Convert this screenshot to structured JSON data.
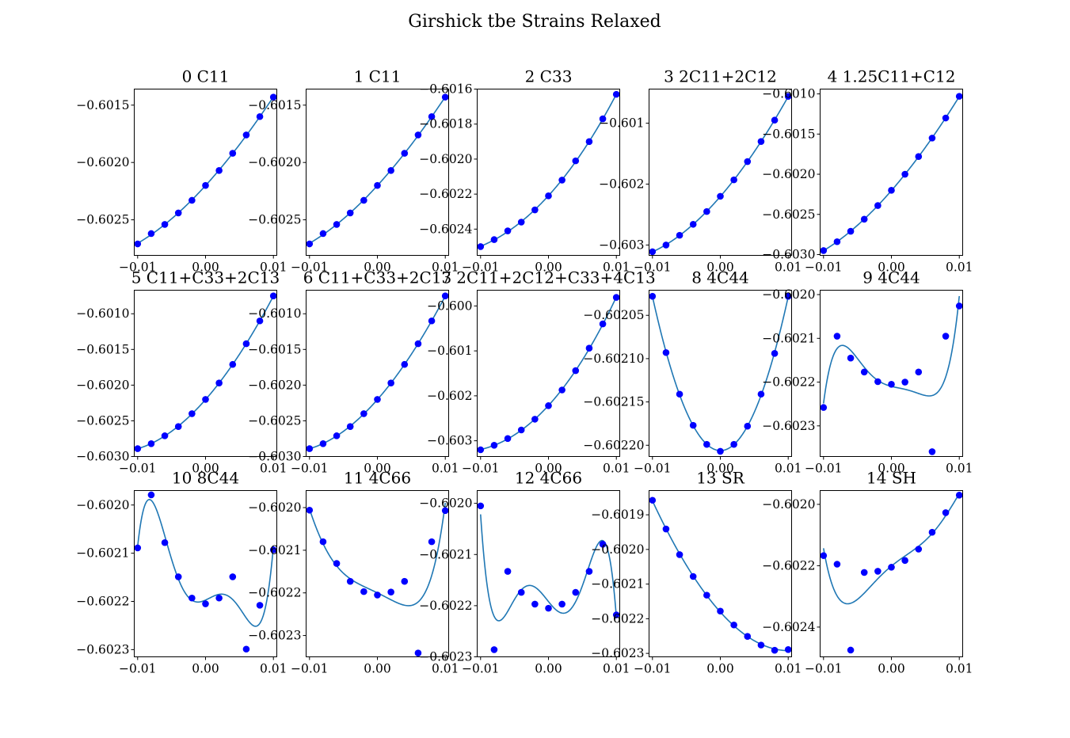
{
  "figure": {
    "title": "Girshick tbe Strains Relaxed"
  },
  "style": {
    "point_color": "#0000ff",
    "line_color": "#1f77b4",
    "axis_color": "#000000"
  },
  "chart_data": [
    {
      "type": "scatter",
      "title": "0 C11",
      "xlim": [
        -0.0105,
        0.0105
      ],
      "ylim": [
        -0.60281,
        -0.60136
      ],
      "xticks": [
        -0.01,
        0.0,
        0.01
      ],
      "xtick_labels": [
        "−0.01",
        "0.00",
        "0.01"
      ],
      "yticks": [
        -0.6015,
        -0.602,
        -0.6025
      ],
      "ytick_labels": [
        "−0.6015",
        "−0.6020",
        "−0.6025"
      ],
      "x": [
        -0.01,
        -0.008,
        -0.006,
        -0.004,
        -0.002,
        0.0,
        0.002,
        0.004,
        0.006,
        0.008,
        0.01
      ],
      "y": [
        -0.60271,
        -0.60262,
        -0.60254,
        -0.60244,
        -0.60233,
        -0.6022,
        -0.60207,
        -0.60192,
        -0.60176,
        -0.6016,
        -0.60143
      ],
      "fit": "cubic"
    },
    {
      "type": "scatter",
      "title": "1 C11",
      "xlim": [
        -0.0105,
        0.0105
      ],
      "ylim": [
        -0.60281,
        -0.60136
      ],
      "xticks": [
        -0.01,
        0.0,
        0.01
      ],
      "xtick_labels": [
        "−0.01",
        "0.00",
        "0.01"
      ],
      "yticks": [
        -0.6015,
        -0.602,
        -0.6025
      ],
      "ytick_labels": [
        "−0.6015",
        "−0.6020",
        "−0.6025"
      ],
      "x": [
        -0.01,
        -0.008,
        -0.006,
        -0.004,
        -0.002,
        0.0,
        0.002,
        0.004,
        0.006,
        0.008,
        0.01
      ],
      "y": [
        -0.60271,
        -0.60262,
        -0.60254,
        -0.60244,
        -0.60233,
        -0.6022,
        -0.60207,
        -0.60192,
        -0.60176,
        -0.6016,
        -0.60143
      ],
      "fit": "cubic"
    },
    {
      "type": "scatter",
      "title": "2 C33",
      "xlim": [
        -0.0105,
        0.0105
      ],
      "ylim": [
        -0.60255,
        -0.6016
      ],
      "xticks": [
        -0.01,
        0.0,
        0.01
      ],
      "xtick_labels": [
        "−0.01",
        "0.00",
        "0.01"
      ],
      "yticks": [
        -0.6016,
        -0.6018,
        -0.602,
        -0.6022,
        -0.6024
      ],
      "ytick_labels": [
        "−0.6016",
        "−0.6018",
        "−0.6020",
        "−0.6022",
        "−0.6024"
      ],
      "x": [
        -0.01,
        -0.008,
        -0.006,
        -0.004,
        -0.002,
        0.0,
        0.002,
        0.004,
        0.006,
        0.008,
        0.01
      ],
      "y": [
        -0.6025,
        -0.60246,
        -0.60241,
        -0.60236,
        -0.60229,
        -0.60221,
        -0.60212,
        -0.60201,
        -0.6019,
        -0.60177,
        -0.60163
      ],
      "fit": "cubic"
    },
    {
      "type": "scatter",
      "title": "3 2C11+2C12",
      "xlim": [
        -0.0105,
        0.0105
      ],
      "ylim": [
        -0.60317,
        -0.60044
      ],
      "xticks": [
        -0.01,
        0.0,
        0.01
      ],
      "xtick_labels": [
        "−0.01",
        "0.00",
        "0.01"
      ],
      "yticks": [
        -0.601,
        -0.602,
        -0.603
      ],
      "ytick_labels": [
        "−0.601",
        "−0.602",
        "−0.603"
      ],
      "x": [
        -0.01,
        -0.008,
        -0.006,
        -0.004,
        -0.002,
        0.0,
        0.002,
        0.004,
        0.006,
        0.008,
        0.01
      ],
      "y": [
        -0.60311,
        -0.603,
        -0.60284,
        -0.60266,
        -0.60245,
        -0.6022,
        -0.60193,
        -0.60163,
        -0.6013,
        -0.60095,
        -0.60056
      ],
      "fit": "cubic"
    },
    {
      "type": "scatter",
      "title": "4 1.25C11+C12",
      "xlim": [
        -0.0105,
        0.0105
      ],
      "ylim": [
        -0.60301,
        -0.60094
      ],
      "xticks": [
        -0.01,
        0.0,
        0.01
      ],
      "xtick_labels": [
        "−0.01",
        "0.00",
        "0.01"
      ],
      "yticks": [
        -0.601,
        -0.6015,
        -0.602,
        -0.6025,
        -0.603
      ],
      "ytick_labels": [
        "−0.6010",
        "−0.6015",
        "−0.6020",
        "−0.6025",
        "−0.6030"
      ],
      "x": [
        -0.01,
        -0.008,
        -0.006,
        -0.004,
        -0.002,
        0.0,
        0.002,
        0.004,
        0.006,
        0.008,
        0.01
      ],
      "y": [
        -0.60295,
        -0.60284,
        -0.60271,
        -0.60256,
        -0.60239,
        -0.6022,
        -0.602,
        -0.60178,
        -0.60155,
        -0.6013,
        -0.60103
      ],
      "fit": "cubic"
    },
    {
      "type": "scatter",
      "title": "5 C11+C33+2C13",
      "xlim": [
        -0.0105,
        0.0105
      ],
      "ylim": [
        -0.603,
        -0.60067
      ],
      "xticks": [
        -0.01,
        0.0,
        0.01
      ],
      "xtick_labels": [
        "−0.01",
        "0.00",
        "0.01"
      ],
      "yticks": [
        -0.601,
        -0.6015,
        -0.602,
        -0.6025,
        -0.603
      ],
      "ytick_labels": [
        "−0.6010",
        "−0.6015",
        "−0.6020",
        "−0.6025",
        "−0.6030"
      ],
      "x": [
        -0.01,
        -0.008,
        -0.006,
        -0.004,
        -0.002,
        0.0,
        0.002,
        0.004,
        0.006,
        0.008,
        0.01
      ],
      "y": [
        -0.60289,
        -0.60282,
        -0.60271,
        -0.60258,
        -0.6024,
        -0.6022,
        -0.60197,
        -0.60171,
        -0.60142,
        -0.6011,
        -0.60075
      ],
      "fit": "cubic"
    },
    {
      "type": "scatter",
      "title": "6 C11+C33+2C13",
      "xlim": [
        -0.0105,
        0.0105
      ],
      "ylim": [
        -0.603,
        -0.60067
      ],
      "xticks": [
        -0.01,
        0.0,
        0.01
      ],
      "xtick_labels": [
        "−0.01",
        "0.00",
        "0.01"
      ],
      "yticks": [
        -0.601,
        -0.6015,
        -0.602,
        -0.6025,
        -0.603
      ],
      "ytick_labels": [
        "−0.6010",
        "−0.6015",
        "−0.6020",
        "−0.6025",
        "−0.6030"
      ],
      "x": [
        -0.01,
        -0.008,
        -0.006,
        -0.004,
        -0.002,
        0.0,
        0.002,
        0.004,
        0.006,
        0.008,
        0.01
      ],
      "y": [
        -0.60289,
        -0.60282,
        -0.60271,
        -0.60258,
        -0.6024,
        -0.6022,
        -0.60197,
        -0.60171,
        -0.60142,
        -0.6011,
        -0.60075
      ],
      "fit": "cubic"
    },
    {
      "type": "scatter",
      "title": "7 2C11+2C12+C33+4C13",
      "xlim": [
        -0.0105,
        0.0105
      ],
      "ylim": [
        -0.60335,
        -0.59965
      ],
      "xticks": [
        -0.01,
        0.0,
        0.01
      ],
      "xtick_labels": [
        "−0.01",
        "0.00",
        "0.01"
      ],
      "yticks": [
        -0.6,
        -0.601,
        -0.602,
        -0.603
      ],
      "ytick_labels": [
        "−0.600",
        "−0.601",
        "−0.602",
        "−0.603"
      ],
      "x": [
        -0.01,
        -0.008,
        -0.006,
        -0.004,
        -0.002,
        0.0,
        0.002,
        0.004,
        0.006,
        0.008,
        0.01
      ],
      "y": [
        -0.6032,
        -0.6031,
        -0.60295,
        -0.60276,
        -0.60252,
        -0.60222,
        -0.60187,
        -0.60144,
        -0.60094,
        -0.6004,
        -0.59981
      ],
      "fit": "cubic"
    },
    {
      "type": "scatter",
      "title": "8 4C44",
      "xlim": [
        -0.0105,
        0.0105
      ],
      "ylim": [
        -0.602213,
        -0.602021
      ],
      "xticks": [
        -0.01,
        0.0,
        0.01
      ],
      "xtick_labels": [
        "−0.01",
        "0.00",
        "0.01"
      ],
      "yticks": [
        -0.60205,
        -0.6021,
        -0.60215,
        -0.6022
      ],
      "ytick_labels": [
        "−0.60205",
        "−0.60210",
        "−0.60215",
        "−0.60220"
      ],
      "x": [
        -0.01,
        -0.008,
        -0.006,
        -0.004,
        -0.002,
        0.0,
        0.002,
        0.004,
        0.006,
        0.008,
        0.01
      ],
      "y": [
        -0.602028,
        -0.602093,
        -0.602141,
        -0.602177,
        -0.602199,
        -0.602207,
        -0.602199,
        -0.602178,
        -0.602141,
        -0.602094,
        -0.602028
      ],
      "fit": "quartic"
    },
    {
      "type": "scatter",
      "title": "9 4C44",
      "xlim": [
        -0.0105,
        0.0105
      ],
      "ylim": [
        -0.60237,
        -0.60199
      ],
      "xticks": [
        -0.01,
        0.0,
        0.01
      ],
      "xtick_labels": [
        "−0.01",
        "0.00",
        "0.01"
      ],
      "yticks": [
        -0.602,
        -0.6021,
        -0.6022,
        -0.6023
      ],
      "ytick_labels": [
        "−0.6020",
        "−0.6021",
        "−0.6022",
        "−0.6023"
      ],
      "x": [
        -0.01,
        -0.008,
        -0.006,
        -0.004,
        -0.002,
        0.0,
        0.002,
        0.004,
        0.006,
        0.008,
        0.01
      ],
      "y": [
        -0.602258,
        -0.602095,
        -0.602145,
        -0.602177,
        -0.602199,
        -0.602205,
        -0.6022,
        -0.602177,
        -0.602359,
        -0.602095,
        -0.602026
      ],
      "fit": "quintic"
    },
    {
      "type": "scatter",
      "title": "10 8C44",
      "xlim": [
        -0.0105,
        0.0105
      ],
      "ylim": [
        -0.602315,
        -0.60197
      ],
      "xticks": [
        -0.01,
        0.0,
        0.01
      ],
      "xtick_labels": [
        "−0.01",
        "0.00",
        "0.01"
      ],
      "yticks": [
        -0.602,
        -0.6021,
        -0.6022,
        -0.6023
      ],
      "ytick_labels": [
        "−0.6020",
        "−0.6021",
        "−0.6022",
        "−0.6023"
      ],
      "x": [
        -0.01,
        -0.008,
        -0.006,
        -0.004,
        -0.002,
        0.0,
        0.002,
        0.004,
        0.006,
        0.008,
        0.01
      ],
      "y": [
        -0.602089,
        -0.601979,
        -0.602078,
        -0.602149,
        -0.602193,
        -0.602205,
        -0.602193,
        -0.602149,
        -0.602299,
        -0.602208,
        -0.602093
      ],
      "fit": "quintic"
    },
    {
      "type": "scatter",
      "title": "11 4C66",
      "xlim": [
        -0.0105,
        0.0105
      ],
      "ylim": [
        -0.60235,
        -0.60196
      ],
      "xticks": [
        -0.01,
        0.0,
        0.01
      ],
      "xtick_labels": [
        "−0.01",
        "0.00",
        "0.01"
      ],
      "yticks": [
        -0.602,
        -0.6021,
        -0.6022,
        -0.6023
      ],
      "ytick_labels": [
        "−0.6020",
        "−0.6021",
        "−0.6022",
        "−0.6023"
      ],
      "x": [
        -0.01,
        -0.008,
        -0.006,
        -0.004,
        -0.002,
        0.0,
        0.002,
        0.004,
        0.006,
        0.008,
        0.01
      ],
      "y": [
        -0.602006,
        -0.60208,
        -0.602131,
        -0.602173,
        -0.602197,
        -0.602205,
        -0.602198,
        -0.602173,
        -0.602341,
        -0.60208,
        -0.602007
      ],
      "fit": "quintic"
    },
    {
      "type": "scatter",
      "title": "12 4C66",
      "xlim": [
        -0.0105,
        0.0105
      ],
      "ylim": [
        -0.6023,
        -0.601975
      ],
      "xticks": [
        -0.01,
        0.0,
        0.01
      ],
      "xtick_labels": [
        "−0.01",
        "0.00",
        "0.01"
      ],
      "yticks": [
        -0.602,
        -0.6021,
        -0.6022,
        -0.6023
      ],
      "ytick_labels": [
        "−0.6020",
        "−0.6021",
        "−0.6022",
        "−0.6023"
      ],
      "x": [
        -0.01,
        -0.008,
        -0.006,
        -0.004,
        -0.002,
        0.0,
        0.002,
        0.004,
        0.006,
        0.008,
        0.01
      ],
      "y": [
        -0.602005,
        -0.602286,
        -0.602133,
        -0.602174,
        -0.602197,
        -0.602205,
        -0.602197,
        -0.602174,
        -0.602133,
        -0.60208,
        -0.602218
      ],
      "fit": "quintic"
    },
    {
      "type": "scatter",
      "title": "13 SR",
      "xlim": [
        -0.0105,
        0.0105
      ],
      "ylim": [
        -0.60231,
        -0.60183
      ],
      "xticks": [
        -0.01,
        0.0,
        0.01
      ],
      "xtick_labels": [
        "−0.01",
        "0.00",
        "0.01"
      ],
      "yticks": [
        -0.6019,
        -0.602,
        -0.6021,
        -0.6022,
        -0.6023
      ],
      "ytick_labels": [
        "−0.6019",
        "−0.6020",
        "−0.6021",
        "−0.6022",
        "−0.6023"
      ],
      "x": [
        -0.01,
        -0.008,
        -0.006,
        -0.004,
        -0.002,
        0.0,
        0.002,
        0.004,
        0.006,
        0.008,
        0.01
      ],
      "y": [
        -0.601858,
        -0.601941,
        -0.602015,
        -0.602078,
        -0.602132,
        -0.602178,
        -0.602218,
        -0.602251,
        -0.602276,
        -0.602291,
        -0.602289
      ],
      "fit": "cubic"
    },
    {
      "type": "scatter",
      "title": "14 SH",
      "xlim": [
        -0.0105,
        0.0105
      ],
      "ylim": [
        -0.602497,
        -0.601955
      ],
      "xticks": [
        -0.01,
        0.0,
        0.01
      ],
      "xtick_labels": [
        "−0.01",
        "0.00",
        "0.01"
      ],
      "yticks": [
        -0.602,
        -0.6022,
        -0.6024
      ],
      "ytick_labels": [
        "−0.6020",
        "−0.6022",
        "−0.6024"
      ],
      "x": [
        -0.01,
        -0.008,
        -0.006,
        -0.004,
        -0.002,
        0.0,
        0.002,
        0.004,
        0.006,
        0.008,
        0.01
      ],
      "y": [
        -0.602167,
        -0.602195,
        -0.602475,
        -0.602222,
        -0.602218,
        -0.602205,
        -0.602183,
        -0.602146,
        -0.602091,
        -0.602027,
        -0.60197
      ],
      "fit": "quintic"
    }
  ]
}
